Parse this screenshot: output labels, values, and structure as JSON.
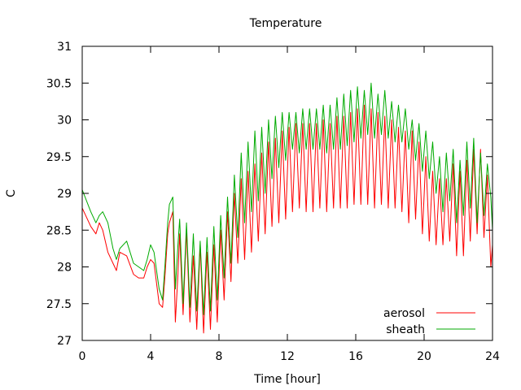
{
  "chart_data": {
    "type": "line",
    "title": "Temperature",
    "xlabel": "Time [hour]",
    "ylabel": "C",
    "xlim": [
      0,
      24
    ],
    "ylim": [
      27,
      31
    ],
    "xticks": [
      0,
      4,
      8,
      12,
      16,
      20,
      24
    ],
    "yticks": [
      27,
      27.5,
      28,
      28.5,
      29,
      29.5,
      30,
      30.5,
      31
    ],
    "xtick_labels": [
      "0",
      "4",
      "8",
      "12",
      "16",
      "20",
      "24"
    ],
    "ytick_labels": [
      "27",
      "27.5",
      "28",
      "28.5",
      "29",
      "29.5",
      "30",
      "30.5",
      "31"
    ],
    "grid": false,
    "legend_position": "bottom-right",
    "series": [
      {
        "name": "aerosol",
        "color": "#ff0000",
        "x": [
          0.0,
          0.5,
          0.8,
          1.0,
          1.2,
          1.5,
          1.8,
          2.0,
          2.2,
          2.6,
          3.0,
          3.3,
          3.6,
          3.8,
          4.0,
          4.2,
          4.5,
          4.7,
          4.85,
          5.0,
          5.1,
          5.3,
          5.45,
          5.6,
          5.7,
          5.9,
          6.1,
          6.3,
          6.5,
          6.7,
          6.9,
          7.1,
          7.3,
          7.5,
          7.7,
          7.9,
          8.1,
          8.3,
          8.5,
          8.7,
          8.9,
          9.1,
          9.3,
          9.5,
          9.7,
          9.9,
          10.1,
          10.3,
          10.5,
          10.7,
          10.9,
          11.1,
          11.3,
          11.5,
          11.7,
          11.9,
          12.1,
          12.3,
          12.5,
          12.7,
          12.9,
          13.1,
          13.3,
          13.5,
          13.7,
          13.9,
          14.1,
          14.3,
          14.5,
          14.7,
          14.9,
          15.1,
          15.3,
          15.5,
          15.7,
          15.9,
          16.1,
          16.3,
          16.5,
          16.7,
          16.9,
          17.1,
          17.3,
          17.5,
          17.7,
          17.9,
          18.1,
          18.3,
          18.5,
          18.7,
          18.9,
          19.1,
          19.3,
          19.5,
          19.7,
          19.9,
          20.1,
          20.3,
          20.5,
          20.7,
          20.9,
          21.1,
          21.3,
          21.5,
          21.7,
          21.9,
          22.1,
          22.3,
          22.5,
          22.7,
          22.9,
          23.1,
          23.3,
          23.5,
          23.7,
          23.9,
          24.0
        ],
        "values": [
          28.8,
          28.55,
          28.45,
          28.6,
          28.5,
          28.2,
          28.05,
          27.95,
          28.2,
          28.15,
          27.9,
          27.85,
          27.85,
          28.0,
          28.1,
          28.05,
          27.5,
          27.45,
          27.9,
          28.45,
          28.6,
          28.75,
          27.25,
          27.9,
          28.45,
          27.35,
          28.5,
          27.25,
          28.15,
          27.15,
          28.3,
          27.1,
          28.2,
          27.15,
          28.3,
          27.25,
          28.5,
          27.55,
          28.75,
          27.8,
          29.0,
          28.05,
          29.2,
          28.1,
          29.3,
          28.2,
          29.4,
          28.35,
          29.55,
          28.45,
          29.7,
          28.55,
          29.75,
          28.6,
          29.85,
          28.65,
          29.9,
          28.75,
          29.95,
          28.8,
          29.95,
          28.75,
          29.95,
          28.75,
          29.95,
          28.8,
          30.0,
          28.75,
          29.95,
          28.8,
          30.05,
          28.8,
          30.05,
          28.8,
          30.1,
          28.85,
          30.15,
          28.85,
          30.2,
          28.85,
          30.15,
          28.8,
          30.1,
          28.85,
          30.05,
          28.8,
          30.0,
          28.8,
          29.9,
          28.75,
          29.85,
          28.6,
          29.85,
          28.65,
          29.7,
          28.45,
          29.5,
          28.35,
          29.3,
          28.3,
          29.2,
          28.3,
          29.2,
          28.35,
          29.4,
          28.15,
          29.3,
          28.15,
          29.45,
          28.35,
          29.6,
          28.45,
          29.6,
          28.4,
          29.25,
          28.0,
          28.3
        ]
      },
      {
        "name": "sheath",
        "color": "#00aa00",
        "x": [
          0.0,
          0.5,
          0.8,
          1.0,
          1.2,
          1.5,
          1.8,
          2.0,
          2.2,
          2.6,
          3.0,
          3.3,
          3.6,
          3.8,
          4.0,
          4.2,
          4.5,
          4.7,
          4.85,
          5.0,
          5.1,
          5.3,
          5.45,
          5.6,
          5.7,
          5.9,
          6.1,
          6.3,
          6.5,
          6.7,
          6.9,
          7.1,
          7.3,
          7.5,
          7.7,
          7.9,
          8.1,
          8.3,
          8.5,
          8.7,
          8.9,
          9.1,
          9.3,
          9.5,
          9.7,
          9.9,
          10.1,
          10.3,
          10.5,
          10.7,
          10.9,
          11.1,
          11.3,
          11.5,
          11.7,
          11.9,
          12.1,
          12.3,
          12.5,
          12.7,
          12.9,
          13.1,
          13.3,
          13.5,
          13.7,
          13.9,
          14.1,
          14.3,
          14.5,
          14.7,
          14.9,
          15.1,
          15.3,
          15.5,
          15.7,
          15.9,
          16.1,
          16.3,
          16.5,
          16.7,
          16.9,
          17.1,
          17.3,
          17.5,
          17.7,
          17.9,
          18.1,
          18.3,
          18.5,
          18.7,
          18.9,
          19.1,
          19.3,
          19.5,
          19.7,
          19.9,
          20.1,
          20.3,
          20.5,
          20.7,
          20.9,
          21.1,
          21.3,
          21.5,
          21.7,
          21.9,
          22.1,
          22.3,
          22.5,
          22.7,
          22.9,
          23.1,
          23.3,
          23.5,
          23.7,
          23.9,
          24.0
        ],
        "values": [
          29.05,
          28.75,
          28.6,
          28.7,
          28.75,
          28.6,
          28.25,
          28.1,
          28.25,
          28.35,
          28.05,
          28.0,
          27.95,
          28.1,
          28.3,
          28.2,
          27.7,
          27.55,
          28.05,
          28.6,
          28.85,
          28.95,
          27.7,
          28.3,
          28.65,
          27.5,
          28.6,
          27.45,
          28.45,
          27.4,
          28.35,
          27.35,
          28.4,
          27.4,
          28.55,
          27.55,
          28.7,
          27.85,
          28.95,
          28.05,
          29.25,
          28.4,
          29.55,
          28.6,
          29.7,
          28.75,
          29.85,
          28.9,
          29.9,
          29.0,
          30.0,
          29.2,
          30.05,
          29.35,
          30.1,
          29.45,
          30.1,
          29.6,
          30.1,
          29.55,
          30.15,
          29.6,
          30.15,
          29.6,
          30.15,
          29.6,
          30.2,
          29.55,
          30.2,
          29.6,
          30.3,
          29.6,
          30.35,
          29.65,
          30.4,
          29.7,
          30.45,
          29.75,
          30.4,
          29.8,
          30.5,
          29.75,
          30.35,
          29.8,
          30.4,
          29.75,
          30.25,
          29.7,
          30.2,
          29.7,
          30.15,
          29.6,
          30.0,
          29.45,
          29.95,
          29.3,
          29.85,
          29.2,
          29.7,
          29.0,
          29.5,
          28.75,
          29.55,
          28.9,
          29.6,
          28.6,
          29.45,
          28.7,
          29.7,
          28.8,
          29.75,
          28.6,
          29.55,
          28.7,
          29.4,
          28.95,
          28.5
        ]
      }
    ]
  }
}
